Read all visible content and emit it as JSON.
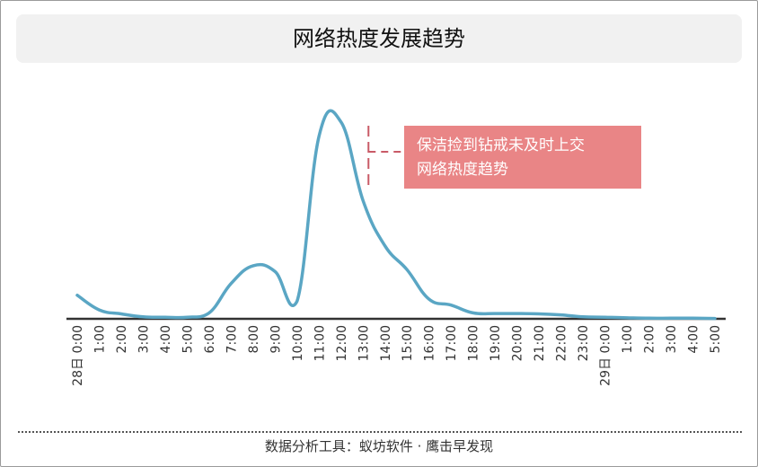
{
  "title": "网络热度发展趋势",
  "footer": "数据分析工具：蚁坊软件 · 鹰击早发现",
  "chart_data": {
    "type": "line",
    "title": "网络热度发展趋势",
    "xlabel": "",
    "ylabel": "",
    "categories": [
      "0:00",
      "1:00",
      "2:00",
      "3:00",
      "4:00",
      "5:00",
      "6:00",
      "7:00",
      "8:00",
      "9:00",
      "10:00",
      "11:00",
      "12:00",
      "13:00",
      "14:00",
      "15:00",
      "16:00",
      "17:00",
      "18:00",
      "19:00",
      "20:00",
      "21:00",
      "22:00",
      "23:00",
      "0:00",
      "1:00",
      "2:00",
      "3:00",
      "4:00",
      "5:00"
    ],
    "day_markers": [
      {
        "index": 0,
        "label": "28日"
      },
      {
        "index": 24,
        "label": "29日"
      }
    ],
    "series": [
      {
        "values": [
          12,
          4.5,
          2.5,
          1,
          0.8,
          0.8,
          3,
          18,
          27,
          24,
          9,
          93,
          100,
          60,
          37,
          25,
          10,
          7,
          3,
          2.7,
          2.7,
          2.5,
          2,
          1,
          0.8,
          0.5,
          0.3,
          0.3,
          0.3,
          0.2
        ]
      }
    ],
    "color": "#5aa6c4",
    "annotation": {
      "index": 13,
      "text_lines": [
        "保洁捡到钻戒未及时上交",
        "网络热度趋势"
      ],
      "box_color": "#e98586",
      "marker_color": "#c95a66"
    },
    "ylim": [
      0,
      100
    ],
    "grid": false,
    "legend": "none"
  }
}
